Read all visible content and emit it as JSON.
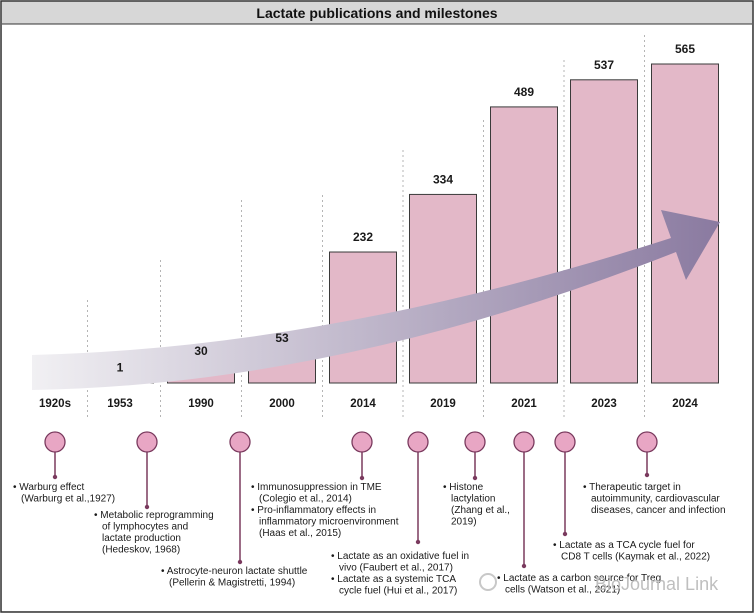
{
  "chart_data": {
    "type": "bar",
    "title": "Lactate publications and milestones",
    "categories": [
      "1920s",
      "1953",
      "1990",
      "2000",
      "2014",
      "2019",
      "2021",
      "2023",
      "2024"
    ],
    "values": [
      null,
      1,
      30,
      53,
      232,
      334,
      489,
      537,
      565
    ],
    "data_labels": [
      "",
      "1",
      "30",
      "53",
      "232",
      "334",
      "489",
      "537",
      "565"
    ],
    "colors": {
      "bar_fill": "#e3b8c8",
      "bar_stroke": "#3a3a3a",
      "arrow_start": "#f1f0f3",
      "arrow_end": "#8a7aa0",
      "marker_fill": "#e8a6c4",
      "marker_stroke": "#7a3a5e",
      "background": "#e8e8e8",
      "title_bar": "#d7d7d7"
    },
    "milestones": [
      {
        "year": "1920s",
        "lines": [
          "• Warburg effect",
          "(Warburg et al.,1927)"
        ]
      },
      {
        "year": "1953",
        "lines": [
          "• Metabolic reprogramming",
          "of lymphocytes and",
          "lactate production",
          "(Hedeskov, 1968)"
        ]
      },
      {
        "year": "1990",
        "lines": [
          "• Astrocyte-neuron lactate shuttle",
          "(Pellerin & Magistretti, 1994)"
        ]
      },
      {
        "year": "2014",
        "lines": [
          "• Immunosuppression in TME",
          "(Colegio et al., 2014)",
          "• Pro-inflammatory effects in",
          "inflammatory microenvironment",
          "(Haas et al., 2015)"
        ]
      },
      {
        "year": "2014",
        "lines": [
          "• Lactate as an oxidative fuel in",
          "vivo (Faubert et al., 2017)",
          "• Lactate as a systemic TCA",
          "cycle fuel (Hui et al., 2017)"
        ]
      },
      {
        "year": "2019",
        "lines": [
          "• Histone",
          "lactylation",
          "(Zhang et al.,",
          "2019)"
        ]
      },
      {
        "year": "2021",
        "lines": [
          "• Lactate as a carbon source for Treg",
          "cells (Watson et al., 2021)"
        ]
      },
      {
        "year": "2021",
        "lines": [
          "• Lactate as a TCA cycle fuel for",
          "CD8 T cells (Kaymak et al., 2022)"
        ]
      },
      {
        "year": "2024",
        "lines": [
          "• Therapeutic target in",
          "autoimmunity, cardiovascular",
          "diseases, cancer and infection"
        ]
      }
    ],
    "watermark": "BioJournal Link"
  }
}
